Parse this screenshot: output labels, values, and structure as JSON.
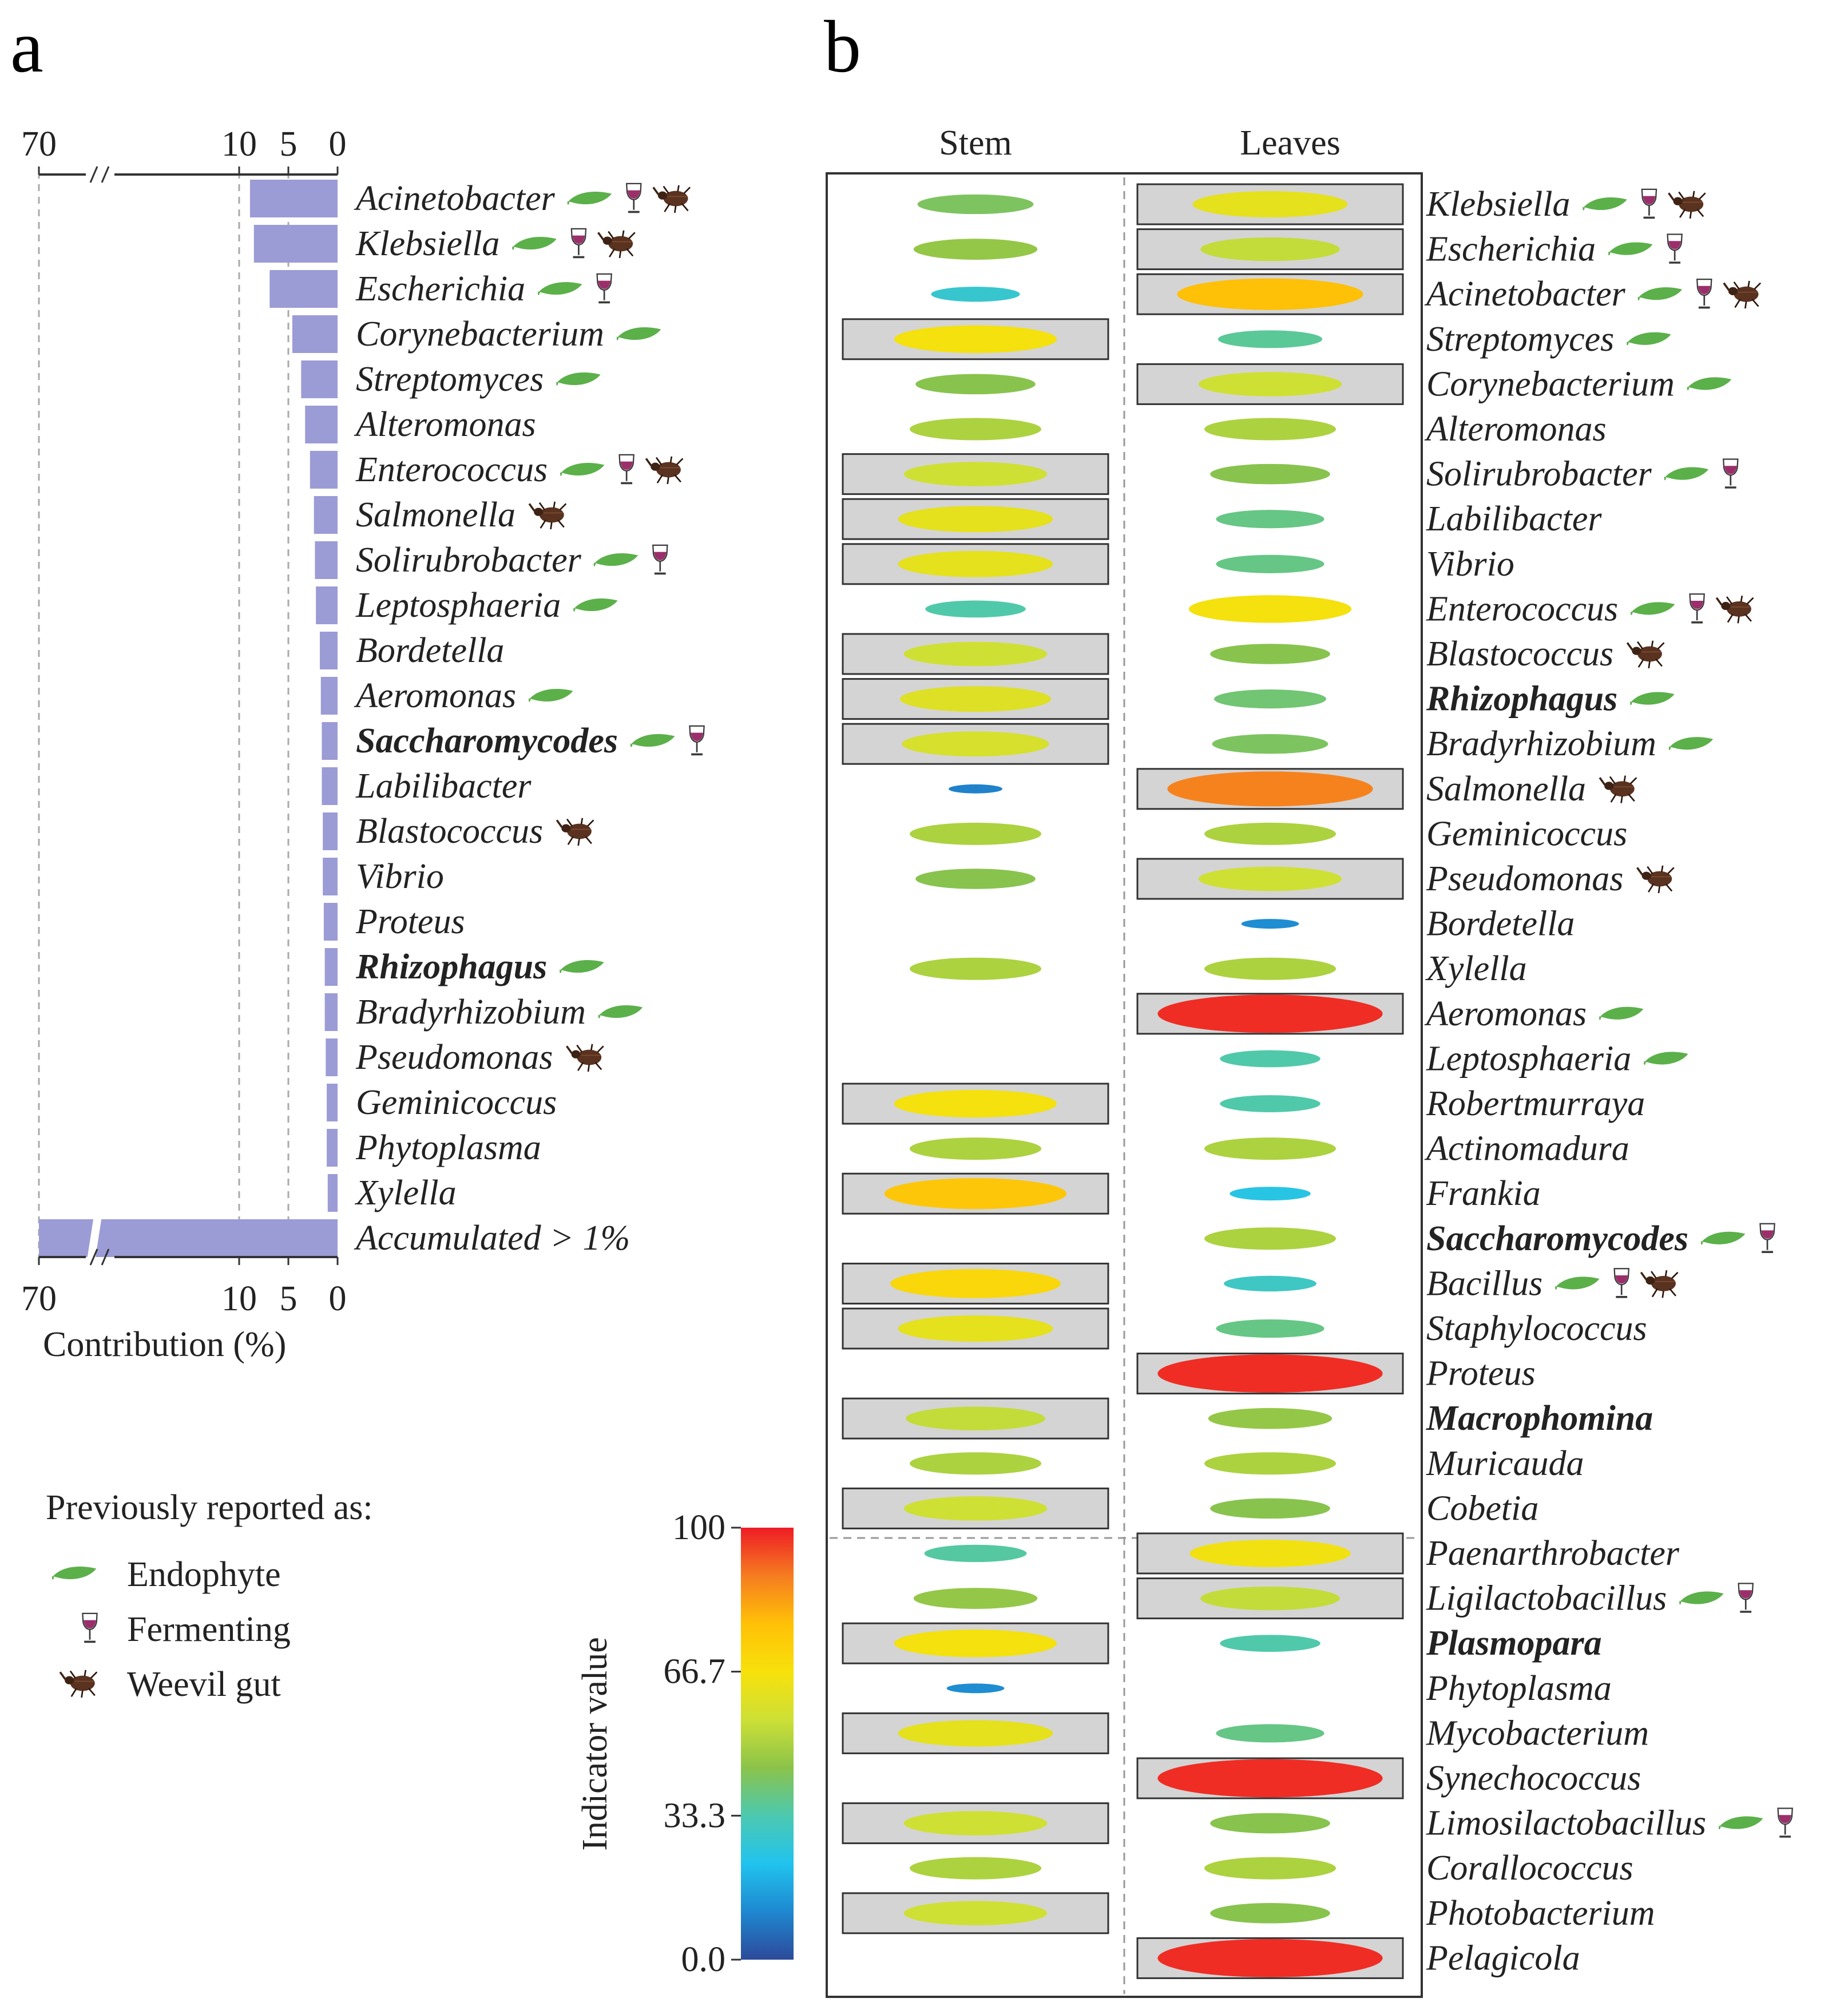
{
  "panel_labels": {
    "a": "a",
    "b": "b"
  },
  "colors": {
    "bar": "#9b9bd6",
    "leaf": "#5bb04a",
    "glass": "#9b2f6b",
    "weevil": "#5a3220",
    "box_fill": "#d4d4d4",
    "colorbar": [
      "#2c4a9a",
      "#1e88d0",
      "#21c3ee",
      "#4cc9b0",
      "#8bc34a",
      "#cde036",
      "#f7e10b",
      "#ffc107",
      "#f57c20",
      "#ee1c25"
    ]
  },
  "legend": {
    "title": "Previously reported as:",
    "items": [
      {
        "icon": "leaf-icon",
        "label": "Endophyte"
      },
      {
        "icon": "wine-glass-icon",
        "label": "Fermenting"
      },
      {
        "icon": "weevil-icon",
        "label": "Weevil gut"
      }
    ]
  },
  "chart_data": [
    {
      "type": "bar",
      "orientation": "horizontal-reversed",
      "title": "a",
      "xlabel": "Contribution (%)",
      "x_ticks": [
        "70",
        "10",
        "5",
        "0"
      ],
      "x_break": "between 10 and 70",
      "bars": [
        {
          "label": "Acinetobacter",
          "value": 8.9,
          "bold": false,
          "tags": [
            "leaf",
            "glass",
            "weevil"
          ]
        },
        {
          "label": "Klebsiella",
          "value": 8.5,
          "bold": false,
          "tags": [
            "leaf",
            "glass",
            "weevil"
          ]
        },
        {
          "label": "Escherichia",
          "value": 6.9,
          "bold": false,
          "tags": [
            "leaf",
            "glass"
          ]
        },
        {
          "label": "Corynebacterium",
          "value": 4.6,
          "bold": false,
          "tags": [
            "leaf"
          ]
        },
        {
          "label": "Streptomyces",
          "value": 3.7,
          "bold": false,
          "tags": [
            "leaf"
          ]
        },
        {
          "label": "Alteromonas",
          "value": 3.3,
          "bold": false,
          "tags": []
        },
        {
          "label": "Enterococcus",
          "value": 2.8,
          "bold": false,
          "tags": [
            "leaf",
            "glass",
            "weevil"
          ]
        },
        {
          "label": "Salmonella",
          "value": 2.4,
          "bold": false,
          "tags": [
            "weevil"
          ]
        },
        {
          "label": "Solirubrobacter",
          "value": 2.3,
          "bold": false,
          "tags": [
            "leaf",
            "glass"
          ]
        },
        {
          "label": "Leptosphaeria",
          "value": 2.2,
          "bold": false,
          "tags": [
            "leaf"
          ]
        },
        {
          "label": "Bordetella",
          "value": 1.8,
          "bold": false,
          "tags": []
        },
        {
          "label": "Aeromonas",
          "value": 1.7,
          "bold": false,
          "tags": [
            "leaf"
          ]
        },
        {
          "label": "Saccharomycodes",
          "value": 1.6,
          "bold": true,
          "tags": [
            "leaf",
            "glass"
          ]
        },
        {
          "label": "Labilibacter",
          "value": 1.6,
          "bold": false,
          "tags": []
        },
        {
          "label": "Blastococcus",
          "value": 1.5,
          "bold": false,
          "tags": [
            "weevil"
          ]
        },
        {
          "label": "Vibrio",
          "value": 1.5,
          "bold": false,
          "tags": []
        },
        {
          "label": "Proteus",
          "value": 1.4,
          "bold": false,
          "tags": []
        },
        {
          "label": "Rhizophagus",
          "value": 1.3,
          "bold": true,
          "tags": [
            "leaf"
          ]
        },
        {
          "label": "Bradyrhizobium",
          "value": 1.3,
          "bold": false,
          "tags": [
            "leaf"
          ]
        },
        {
          "label": "Pseudomonas",
          "value": 1.2,
          "bold": false,
          "tags": [
            "weevil"
          ]
        },
        {
          "label": "Geminicoccus",
          "value": 1.1,
          "bold": false,
          "tags": []
        },
        {
          "label": "Phytoplasma",
          "value": 1.1,
          "bold": false,
          "tags": []
        },
        {
          "label": "Xylella",
          "value": 1.0,
          "bold": false,
          "tags": []
        },
        {
          "label": "Accumulated > 1%",
          "value": 70,
          "bold": false,
          "tags": []
        }
      ]
    },
    {
      "type": "heatmap",
      "title": "b",
      "columns": [
        "Stem",
        "Leaves"
      ],
      "colorbar_label": "Indicator value",
      "colorbar_ticks": [
        "100",
        "66.7",
        "33.3",
        "0.0"
      ],
      "colorbar_range": [
        0,
        100
      ],
      "rows": [
        {
          "label": "Klebsiella",
          "bold": false,
          "tags": [
            "leaf",
            "glass",
            "weevil"
          ],
          "stem": 42,
          "stem_sig": false,
          "leaves": 62,
          "leaves_sig": true
        },
        {
          "label": "Escherichia",
          "bold": false,
          "tags": [
            "leaf",
            "glass"
          ],
          "stem": 46,
          "stem_sig": false,
          "leaves": 54,
          "leaves_sig": true
        },
        {
          "label": "Acinetobacter",
          "bold": false,
          "tags": [
            "leaf",
            "glass",
            "weevil"
          ],
          "stem": 28,
          "stem_sig": false,
          "leaves": 78,
          "leaves_sig": true
        },
        {
          "label": "Streptomyces",
          "bold": false,
          "tags": [
            "leaf"
          ],
          "stem": 66,
          "stem_sig": true,
          "leaves": 36,
          "leaves_sig": false
        },
        {
          "label": "Corynebacterium",
          "bold": false,
          "tags": [
            "leaf"
          ],
          "stem": 44,
          "stem_sig": false,
          "leaves": 56,
          "leaves_sig": true
        },
        {
          "label": "Alteromonas",
          "bold": false,
          "tags": [],
          "stem": 50,
          "stem_sig": false,
          "leaves": 50,
          "leaves_sig": false
        },
        {
          "label": "Solirubrobacter",
          "bold": false,
          "tags": [
            "leaf",
            "glass"
          ],
          "stem": 56,
          "stem_sig": true,
          "leaves": 44,
          "leaves_sig": false
        },
        {
          "label": "Labilibacter",
          "bold": false,
          "tags": [],
          "stem": 62,
          "stem_sig": true,
          "leaves": 38,
          "leaves_sig": false
        },
        {
          "label": "Vibrio",
          "bold": false,
          "tags": [],
          "stem": 62,
          "stem_sig": true,
          "leaves": 38,
          "leaves_sig": false
        },
        {
          "label": "Enterococcus",
          "bold": false,
          "tags": [
            "leaf",
            "glass",
            "weevil"
          ],
          "stem": 34,
          "stem_sig": false,
          "leaves": 66,
          "leaves_sig": false
        },
        {
          "label": "Blastococcus",
          "bold": false,
          "tags": [
            "weevil"
          ],
          "stem": 56,
          "stem_sig": true,
          "leaves": 44,
          "leaves_sig": false
        },
        {
          "label": "Rhizophagus",
          "bold": true,
          "tags": [
            "leaf"
          ],
          "stem": 60,
          "stem_sig": true,
          "leaves": 40,
          "leaves_sig": false
        },
        {
          "label": "Bradyrhizobium",
          "bold": false,
          "tags": [
            "leaf"
          ],
          "stem": 58,
          "stem_sig": true,
          "leaves": 42,
          "leaves_sig": false
        },
        {
          "label": "Salmonella",
          "bold": false,
          "tags": [
            "weevil"
          ],
          "stem": 10,
          "stem_sig": false,
          "leaves": 88,
          "leaves_sig": true
        },
        {
          "label": "Geminicoccus",
          "bold": false,
          "tags": [],
          "stem": 50,
          "stem_sig": false,
          "leaves": 50,
          "leaves_sig": false
        },
        {
          "label": "Pseudomonas",
          "bold": false,
          "tags": [
            "weevil"
          ],
          "stem": 44,
          "stem_sig": false,
          "leaves": 56,
          "leaves_sig": true
        },
        {
          "label": "Bordetella",
          "bold": false,
          "tags": [],
          "stem": null,
          "stem_sig": false,
          "leaves": 12,
          "leaves_sig": false
        },
        {
          "label": "Xylella",
          "bold": false,
          "tags": [],
          "stem": 50,
          "stem_sig": false,
          "leaves": 50,
          "leaves_sig": false
        },
        {
          "label": "Aeromonas",
          "bold": false,
          "tags": [
            "leaf"
          ],
          "stem": null,
          "stem_sig": false,
          "leaves": 98,
          "leaves_sig": true
        },
        {
          "label": "Leptosphaeria",
          "bold": false,
          "tags": [
            "leaf"
          ],
          "stem": null,
          "stem_sig": false,
          "leaves": 34,
          "leaves_sig": false
        },
        {
          "label": "Robertmurraya",
          "bold": false,
          "tags": [],
          "stem": 66,
          "stem_sig": true,
          "leaves": 34,
          "leaves_sig": false
        },
        {
          "label": "Actinomadura",
          "bold": false,
          "tags": [],
          "stem": 50,
          "stem_sig": false,
          "leaves": 50,
          "leaves_sig": false
        },
        {
          "label": "Frankia",
          "bold": false,
          "tags": [],
          "stem": 76,
          "stem_sig": true,
          "leaves": 24,
          "leaves_sig": false
        },
        {
          "label": "Saccharomycodes",
          "bold": true,
          "tags": [
            "leaf",
            "glass"
          ],
          "stem": null,
          "stem_sig": false,
          "leaves": 50,
          "leaves_sig": false
        },
        {
          "label": "Bacillus",
          "bold": false,
          "tags": [
            "leaf",
            "glass",
            "weevil"
          ],
          "stem": 70,
          "stem_sig": true,
          "leaves": 30,
          "leaves_sig": false
        },
        {
          "label": "Staphylococcus",
          "bold": false,
          "tags": [],
          "stem": 62,
          "stem_sig": true,
          "leaves": 38,
          "leaves_sig": false
        },
        {
          "label": "Proteus",
          "bold": false,
          "tags": [],
          "stem": null,
          "stem_sig": false,
          "leaves": 98,
          "leaves_sig": true
        },
        {
          "label": "Macrophomina",
          "bold": true,
          "tags": [],
          "stem": 54,
          "stem_sig": true,
          "leaves": 46,
          "leaves_sig": false
        },
        {
          "label": "Muricauda",
          "bold": false,
          "tags": [],
          "stem": 50,
          "stem_sig": false,
          "leaves": 50,
          "leaves_sig": false
        },
        {
          "label": "Cobetia",
          "bold": false,
          "tags": [],
          "stem": 56,
          "stem_sig": true,
          "leaves": 44,
          "leaves_sig": false
        },
        {
          "label": "Paenarthrobacter",
          "bold": false,
          "tags": [],
          "stem": 35,
          "stem_sig": false,
          "leaves": 65,
          "leaves_sig": true
        },
        {
          "label": "Ligilactobacillus",
          "bold": false,
          "tags": [
            "leaf",
            "glass"
          ],
          "stem": 46,
          "stem_sig": false,
          "leaves": 54,
          "leaves_sig": true
        },
        {
          "label": "Plasmopara",
          "bold": true,
          "tags": [],
          "stem": 66,
          "stem_sig": true,
          "leaves": 34,
          "leaves_sig": false
        },
        {
          "label": "Phytoplasma",
          "bold": false,
          "tags": [],
          "stem": 12,
          "stem_sig": false,
          "leaves": null,
          "leaves_sig": false
        },
        {
          "label": "Mycobacterium",
          "bold": false,
          "tags": [],
          "stem": 62,
          "stem_sig": true,
          "leaves": 38,
          "leaves_sig": false
        },
        {
          "label": "Synechococcus",
          "bold": false,
          "tags": [],
          "stem": null,
          "stem_sig": false,
          "leaves": 98,
          "leaves_sig": true
        },
        {
          "label": "Limosilactobacillus",
          "bold": false,
          "tags": [
            "leaf",
            "glass"
          ],
          "stem": 56,
          "stem_sig": true,
          "leaves": 44,
          "leaves_sig": false
        },
        {
          "label": "Corallococcus",
          "bold": false,
          "tags": [],
          "stem": 50,
          "stem_sig": false,
          "leaves": 50,
          "leaves_sig": false
        },
        {
          "label": "Photobacterium",
          "bold": false,
          "tags": [],
          "stem": 56,
          "stem_sig": true,
          "leaves": 44,
          "leaves_sig": false
        },
        {
          "label": "Pelagicola",
          "bold": false,
          "tags": [],
          "stem": null,
          "stem_sig": false,
          "leaves": 98,
          "leaves_sig": true
        }
      ]
    }
  ]
}
